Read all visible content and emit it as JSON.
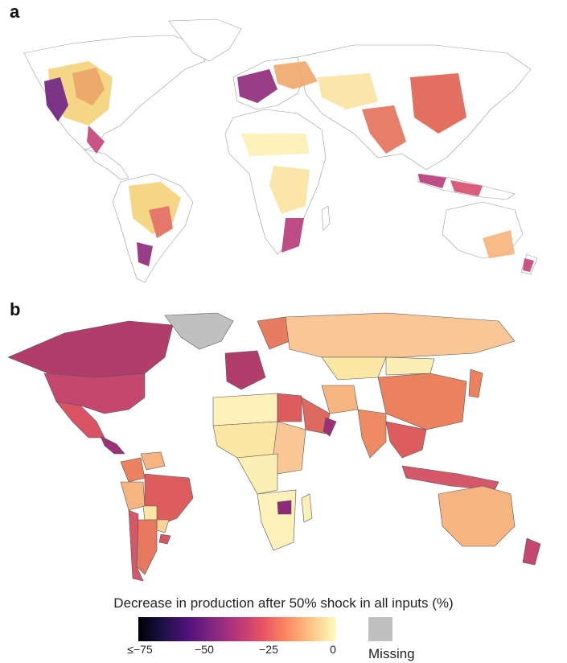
{
  "panels": {
    "a": "a",
    "b": "b"
  },
  "legend": {
    "title": "Decrease in production after 50% shock in all inputs (%)",
    "ticks": [
      "≤−75",
      "−50",
      "−25",
      "0"
    ],
    "tick_values": [
      -75,
      -50,
      -25,
      0
    ],
    "range": [
      -75,
      0
    ],
    "missing_label": "Missing",
    "missing_color": "#c0c0c0",
    "colormap": [
      "#000004",
      "#1d1147",
      "#51127c",
      "#822681",
      "#b73779",
      "#e75263",
      "#fc8961",
      "#fec488",
      "#fcfdbf"
    ]
  },
  "map_b_regions": [
    {
      "name": "Greenland",
      "value": null
    },
    {
      "name": "Canada",
      "value": -50
    },
    {
      "name": "USA",
      "value": -48
    },
    {
      "name": "Mexico",
      "value": -40
    },
    {
      "name": "Central America",
      "value": -55
    },
    {
      "name": "Colombia",
      "value": -30
    },
    {
      "name": "Venezuela",
      "value": -25
    },
    {
      "name": "Brazil",
      "value": -38
    },
    {
      "name": "Peru",
      "value": -25
    },
    {
      "name": "Bolivia",
      "value": -15
    },
    {
      "name": "Chile",
      "value": -48
    },
    {
      "name": "Argentina",
      "value": -32
    },
    {
      "name": "Paraguay",
      "value": -20
    },
    {
      "name": "Uruguay",
      "value": -40
    },
    {
      "name": "Western Europe",
      "value": -55
    },
    {
      "name": "Scandinavia",
      "value": -35
    },
    {
      "name": "Russia",
      "value": -15
    },
    {
      "name": "Kazakhstan",
      "value": -8
    },
    {
      "name": "Mongolia",
      "value": -5
    },
    {
      "name": "China",
      "value": -30
    },
    {
      "name": "Japan",
      "value": -30
    },
    {
      "name": "India",
      "value": -25
    },
    {
      "name": "Southeast Asia",
      "value": -40
    },
    {
      "name": "Indonesia",
      "value": -42
    },
    {
      "name": "Australia",
      "value": -18
    },
    {
      "name": "New Zealand",
      "value": -62
    },
    {
      "name": "North Africa",
      "value": -3
    },
    {
      "name": "Egypt",
      "value": -42
    },
    {
      "name": "Arabian Peninsula",
      "value": -38
    },
    {
      "name": "Oman",
      "value": -65
    },
    {
      "name": "Iran",
      "value": -22
    },
    {
      "name": "West Africa",
      "value": -8
    },
    {
      "name": "East Africa",
      "value": -15
    },
    {
      "name": "Southern Africa",
      "value": -5
    },
    {
      "name": "Zimbabwe",
      "value": -62
    },
    {
      "name": "Madagascar",
      "value": -3
    }
  ]
}
